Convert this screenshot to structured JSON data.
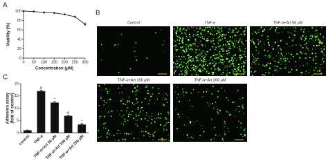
{
  "figure": {
    "panel_labels": [
      "A",
      "B",
      "C"
    ],
    "images": [
      "Control",
      "TNF-α",
      "TNF-α+Art 50 μM",
      "TNF-α+Art 100 μM",
      "TNF-α+Art 200 μM"
    ]
  },
  "chart_data": [
    {
      "type": "line",
      "x": [
        0,
        50,
        100,
        150,
        200,
        250,
        300
      ],
      "series": [
        {
          "color": "#222",
          "values": [
            100,
            99,
            97,
            96,
            93,
            88,
            72
          ],
          "errors": [
            1,
            1,
            2,
            1,
            1,
            2,
            4
          ]
        }
      ],
      "xlim": [
        0,
        300
      ],
      "xticks": [
        0,
        50,
        100,
        150,
        200,
        250,
        300
      ],
      "ylim": [
        0,
        100
      ],
      "yticks": [
        0,
        20,
        40,
        60,
        80,
        100
      ],
      "ylabel": "Viability (%)",
      "xlabel": "Concentration (μM)"
    },
    {
      "type": "bar",
      "categories": [
        "control",
        "TNF-α",
        "TNF-α+Art 50 μM",
        "TNF-α+Art 100 μM",
        "TNF-α+Art 200 μM"
      ],
      "series": [
        {
          "color": "#111",
          "values": [
            1,
            17,
            12.3,
            6.9,
            3.4
          ],
          "errors": [
            0.1,
            0.4,
            0.4,
            0.3,
            0.3
          ]
        }
      ],
      "annotations": [
        null,
        "#",
        "*",
        "#",
        "*"
      ],
      "ylim": [
        0,
        20
      ],
      "yticks": [
        0,
        5,
        10,
        15,
        20
      ],
      "ylabel": [
        "Adhesion assay",
        "(fold of control)"
      ]
    }
  ]
}
